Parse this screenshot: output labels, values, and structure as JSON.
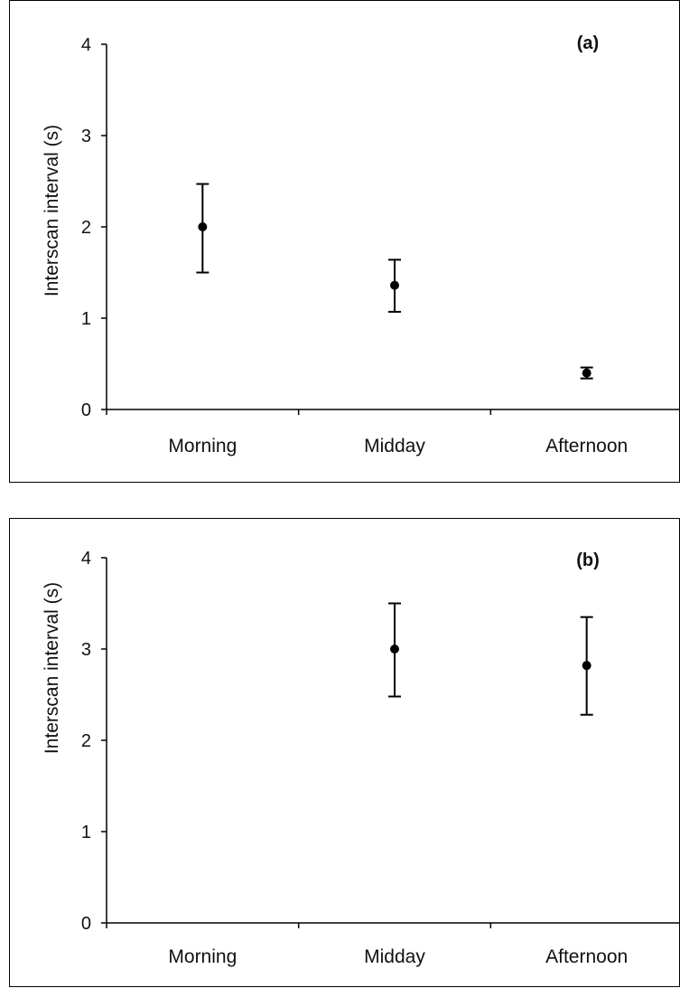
{
  "chart_data": [
    {
      "type": "scatter",
      "panel_label": "(a)",
      "ylabel": "Interscan interval (s)",
      "categories": [
        "Morning",
        "Midday",
        "Afternoon"
      ],
      "ylim": [
        0,
        4
      ],
      "yticks": [
        0,
        1,
        2,
        3,
        4
      ],
      "series": [
        {
          "values": [
            2.0,
            1.36,
            0.4
          ],
          "error_upper": [
            2.47,
            1.64,
            0.46
          ],
          "error_lower": [
            1.5,
            1.07,
            0.34
          ]
        }
      ]
    },
    {
      "type": "scatter",
      "panel_label": "(b)",
      "ylabel": "Interscan interval (s)",
      "categories": [
        "Morning",
        "Midday",
        "Afternoon"
      ],
      "ylim": [
        0,
        4
      ],
      "yticks": [
        0,
        1,
        2,
        3,
        4
      ],
      "series": [
        {
          "values": [
            null,
            3.0,
            2.82
          ],
          "error_upper": [
            null,
            3.5,
            3.35
          ],
          "error_lower": [
            null,
            2.48,
            2.28
          ]
        }
      ]
    }
  ]
}
